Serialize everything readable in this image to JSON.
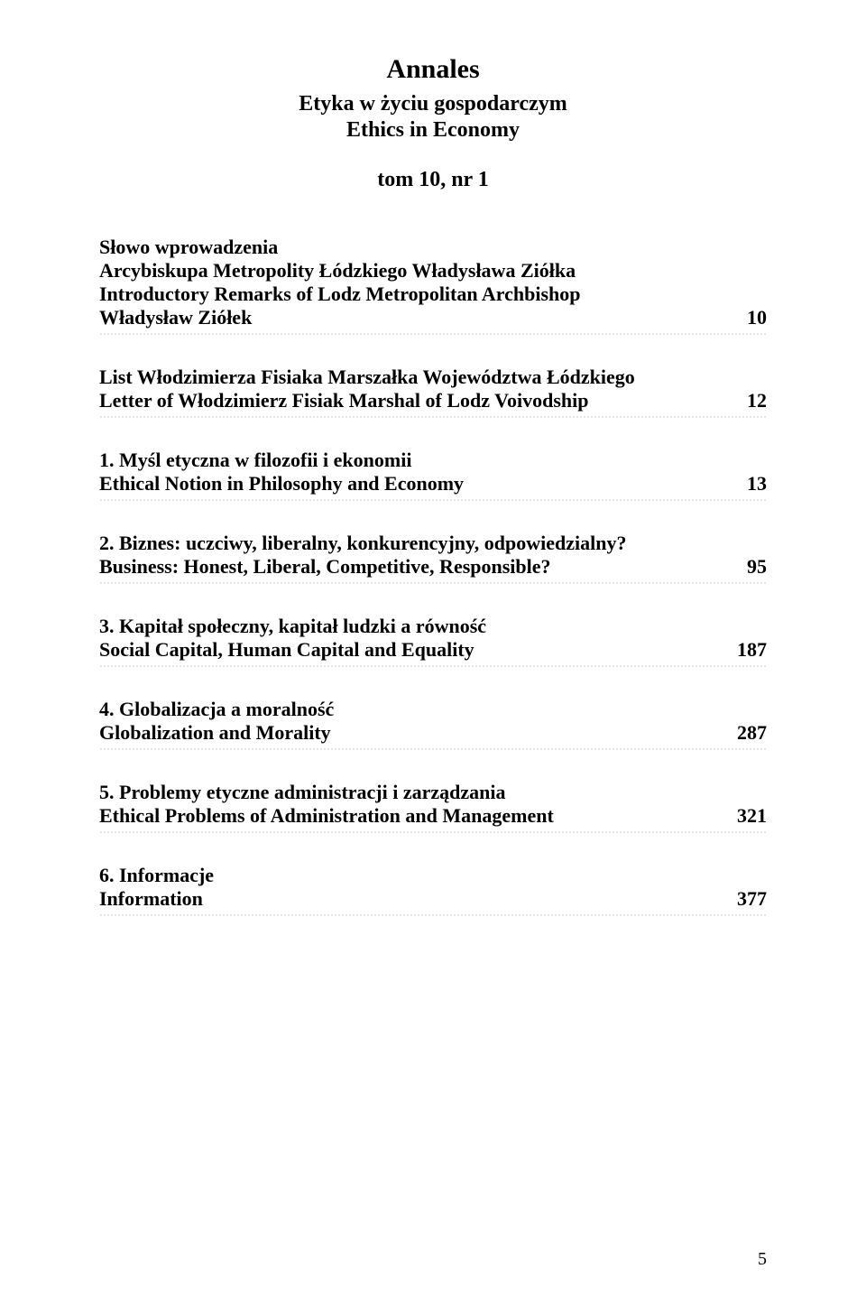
{
  "header": {
    "main_title": "Annales",
    "subtitle1": "Etyka w życiu gospodarczym",
    "subtitle2": "Ethics in Economy",
    "volume": "tom 10, nr 1"
  },
  "entries": [
    {
      "lines": [
        "Słowo wprowadzenia",
        "Arcybiskupa Metropolity Łódzkiego Władysława Ziółka",
        "Introductory Remarks of Lodz Metropolitan Archbishop",
        "Władysław Ziółek"
      ],
      "page": "10"
    },
    {
      "lines": [
        "List Włodzimierza Fisiaka Marszałka Województwa Łódzkiego",
        "Letter of Włodzimierz Fisiak Marshal of Lodz Voivodship"
      ],
      "page": "12"
    },
    {
      "lines": [
        "1. Myśl etyczna w filozofii i ekonomii",
        "Ethical Notion in Philosophy and Economy"
      ],
      "page": "13"
    },
    {
      "lines": [
        "2. Biznes: uczciwy, liberalny, konkurencyjny, odpowiedzialny?",
        "Business: Honest, Liberal, Competitive, Responsible?"
      ],
      "page": "95"
    },
    {
      "lines": [
        "3. Kapitał społeczny, kapitał ludzki a równość",
        "Social Capital, Human Capital and Equality"
      ],
      "page": "187"
    },
    {
      "lines": [
        "4. Globalizacja a moralność",
        "Globalization and Morality"
      ],
      "page": "287"
    },
    {
      "lines": [
        "5. Problemy etyczne administracji i zarządzania",
        "Ethical Problems of Administration and Management"
      ],
      "page": "321"
    },
    {
      "lines": [
        "6. Informacje",
        "Information"
      ],
      "page": "377"
    }
  ],
  "footer_page": "5",
  "style": {
    "background_color": "#ffffff",
    "text_color": "#000000",
    "dot_color": "#9a9a9a",
    "font_family": "Times New Roman",
    "title_fontsize": 30,
    "subtitle_fontsize": 24,
    "entry_fontsize": 22,
    "footer_fontsize": 20
  }
}
